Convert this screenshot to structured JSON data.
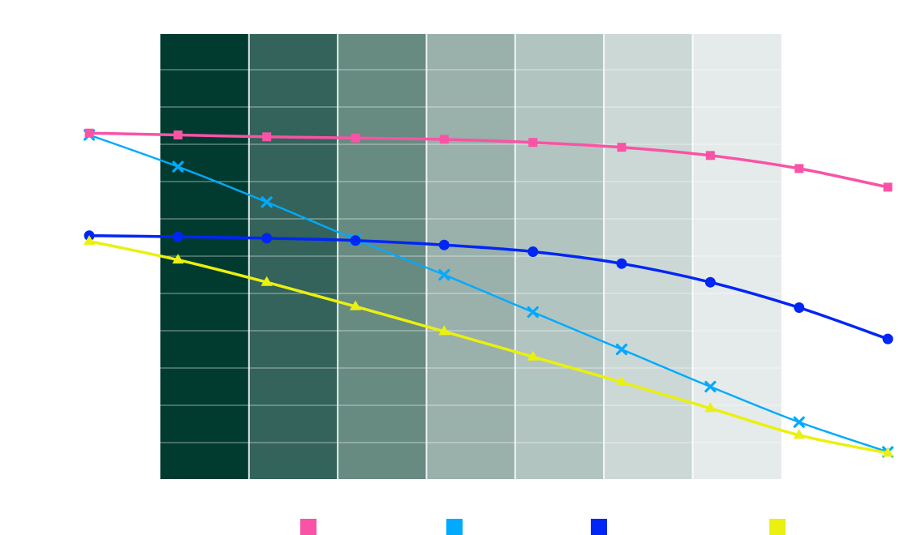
{
  "chart_data": {
    "type": "line",
    "title": "",
    "xlabel": "",
    "ylabel": "",
    "x": [
      0,
      1,
      2,
      3,
      4,
      5,
      6,
      7,
      8,
      9
    ],
    "xlim": [
      0,
      9
    ],
    "ylim": [
      0,
      12
    ],
    "grid": true,
    "legend_position": "bottom",
    "background_bands": [
      {
        "from": 0.8,
        "to": 1.8,
        "color": "#013b30"
      },
      {
        "from": 1.8,
        "to": 2.8,
        "color": "#33635a"
      },
      {
        "from": 2.8,
        "to": 3.8,
        "color": "#678a81"
      },
      {
        "from": 3.8,
        "to": 4.8,
        "color": "#99b0ab"
      },
      {
        "from": 4.8,
        "to": 5.8,
        "color": "#b2c4bf"
      },
      {
        "from": 5.8,
        "to": 6.8,
        "color": "#ccd8d5"
      },
      {
        "from": 6.8,
        "to": 7.8,
        "color": "#e5ebea"
      }
    ],
    "series": [
      {
        "name": "",
        "color": "#f953a5",
        "marker": "square",
        "values": [
          9.3,
          9.25,
          9.2,
          9.17,
          9.13,
          9.05,
          8.92,
          8.7,
          8.35,
          7.85
        ]
      },
      {
        "name": "",
        "color": "#00aaff",
        "marker": "x",
        "values": [
          9.25,
          8.4,
          7.45,
          6.45,
          5.5,
          4.5,
          3.5,
          2.5,
          1.55,
          0.75
        ]
      },
      {
        "name": "",
        "color": "#0026f5",
        "marker": "circle",
        "values": [
          6.55,
          6.52,
          6.48,
          6.42,
          6.3,
          6.12,
          5.8,
          5.3,
          4.62,
          3.78
        ]
      },
      {
        "name": "",
        "color": "#eaf00f",
        "marker": "triangle",
        "values": [
          6.4,
          5.9,
          5.3,
          4.65,
          3.98,
          3.3,
          2.62,
          1.92,
          1.2,
          0.72
        ]
      }
    ]
  }
}
